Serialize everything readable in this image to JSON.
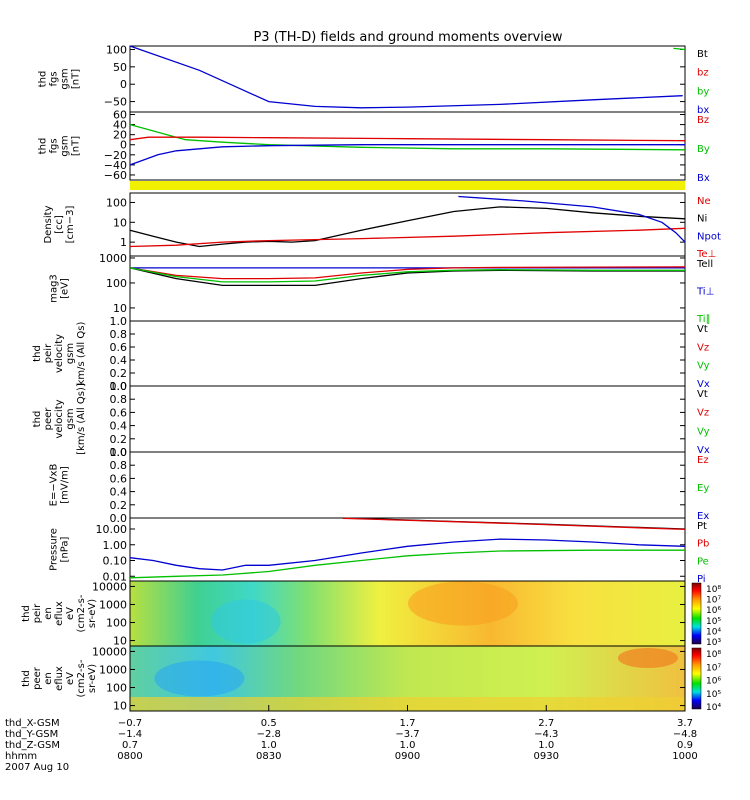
{
  "title": "P3 (TH-D) fields and ground moments overview",
  "date_label": "2007 Aug 10",
  "colors": {
    "black": "#000000",
    "red": "#e00000",
    "green": "#00c000",
    "blue": "#0000d0",
    "yellow": "#f0f000"
  },
  "chart_data": [
    {
      "type": "line",
      "id": "bt",
      "ylabel": [
        "thd",
        "fgs",
        "gsm",
        "[nT]"
      ],
      "yticks": [
        "100",
        "50",
        "0",
        "−50"
      ],
      "ylim": [
        -80,
        110
      ],
      "yticks_num": [
        100,
        50,
        0,
        -50
      ],
      "legend": [
        {
          "label": "Bt",
          "color": "black"
        },
        {
          "label": "bz",
          "color": "red"
        },
        {
          "label": "by",
          "color": "green"
        },
        {
          "label": "bx",
          "color": "blue"
        }
      ],
      "series": [
        {
          "name": "bx",
          "color": "blue",
          "x": [
            0,
            15,
            25,
            30,
            40,
            50,
            60,
            80,
            100,
            119.5
          ],
          "y": [
            110,
            40,
            -20,
            -50,
            -64,
            -68,
            -66,
            -58,
            -45,
            -33
          ]
        },
        {
          "name": "by",
          "color": "green",
          "x": [
            117.5,
            120
          ],
          "y": [
            103,
            100
          ]
        }
      ]
    },
    {
      "type": "line",
      "id": "b",
      "ylabel": [
        "thd",
        "fgs",
        "gsm",
        "[nT]"
      ],
      "yticks": [
        "60",
        "40",
        "20",
        "0",
        "−20",
        "−40",
        "−60"
      ],
      "ylim": [
        -70,
        65
      ],
      "yticks_num": [
        60,
        40,
        20,
        0,
        -20,
        -40,
        -60
      ],
      "legend": [
        {
          "label": "Bz",
          "color": "red"
        },
        {
          "label": "By",
          "color": "green"
        },
        {
          "label": "Bx",
          "color": "blue"
        }
      ],
      "series": [
        {
          "name": "By",
          "color": "green",
          "x": [
            0,
            4,
            8,
            12,
            20,
            30,
            50,
            70,
            90,
            120
          ],
          "y": [
            40,
            30,
            20,
            10,
            5,
            0,
            -5,
            -8,
            -8,
            -10
          ]
        },
        {
          "name": "Bz",
          "color": "red",
          "x": [
            0,
            4,
            8,
            15,
            30,
            60,
            90,
            120
          ],
          "y": [
            10,
            15,
            15,
            15,
            14,
            12,
            10,
            8
          ]
        },
        {
          "name": "Bx",
          "color": "blue",
          "x": [
            0,
            3,
            6,
            10,
            15,
            20,
            30,
            50,
            80,
            120
          ],
          "y": [
            -40,
            -30,
            -20,
            -12,
            -8,
            -4,
            -2,
            0,
            0,
            0
          ]
        }
      ]
    },
    {
      "type": "line",
      "id": "density",
      "ylabel": [
        "Density",
        "[cc]",
        "[cm−3]"
      ],
      "yticks": [
        "100",
        "10",
        "1"
      ],
      "scale": "log",
      "ylim": [
        0.2,
        300
      ],
      "yticks_num": [
        100,
        10,
        1
      ],
      "legend": [
        {
          "label": "Ne",
          "color": "red"
        },
        {
          "label": "Ni",
          "color": "black"
        },
        {
          "label": "Npot",
          "color": "blue"
        },
        {
          "label": "Te⊥",
          "color": "red"
        }
      ],
      "series": [
        {
          "name": "Ni",
          "color": "black",
          "x": [
            0,
            5,
            10,
            15,
            20,
            25,
            30,
            35,
            40,
            50,
            60,
            70,
            80,
            90,
            100,
            110,
            120
          ],
          "y": [
            4,
            2,
            1,
            0.6,
            0.8,
            1,
            1.1,
            1,
            1.2,
            4,
            12,
            35,
            60,
            50,
            30,
            20,
            15
          ]
        },
        {
          "name": "Ne",
          "color": "red",
          "x": [
            0,
            10,
            20,
            30,
            50,
            70,
            90,
            110,
            120
          ],
          "y": [
            0.6,
            0.7,
            1,
            1.2,
            1.5,
            2,
            3,
            4,
            5
          ]
        },
        {
          "name": "Npot",
          "color": "blue",
          "x": [
            71,
            85,
            100,
            110,
            115,
            118,
            120
          ],
          "y": [
            200,
            120,
            60,
            25,
            10,
            3,
            1
          ]
        }
      ]
    },
    {
      "type": "line",
      "id": "temp",
      "ylabel": [
        "mag3",
        "[eV]"
      ],
      "yticks": [
        "1000",
        "100",
        "10"
      ],
      "scale": "log",
      "ylim": [
        3,
        1200
      ],
      "yticks_num": [
        1000,
        100,
        10
      ],
      "legend": [
        {
          "label": "Tell",
          "color": "black"
        },
        {
          "label": "Ti⊥",
          "color": "blue"
        },
        {
          "label": "Ti∥",
          "color": "green"
        }
      ],
      "series": [
        {
          "name": "Ti⊥",
          "color": "blue",
          "x": [
            0,
            20,
            40,
            60,
            80,
            100,
            120
          ],
          "y": [
            400,
            400,
            400,
            400,
            400,
            400,
            400
          ]
        },
        {
          "name": "Te⊥",
          "color": "red",
          "x": [
            0,
            10,
            20,
            30,
            40,
            50,
            60,
            70,
            80,
            100,
            120
          ],
          "y": [
            400,
            200,
            150,
            150,
            160,
            250,
            350,
            400,
            420,
            430,
            440
          ]
        },
        {
          "name": "Tell",
          "color": "black",
          "x": [
            0,
            10,
            20,
            30,
            40,
            50,
            60,
            70,
            80,
            100,
            120
          ],
          "y": [
            400,
            150,
            80,
            80,
            80,
            150,
            250,
            300,
            320,
            300,
            300
          ]
        },
        {
          "name": "Ti∥",
          "color": "green",
          "x": [
            0,
            10,
            20,
            30,
            40,
            50,
            60,
            70,
            80,
            100,
            120
          ],
          "y": [
            400,
            180,
            110,
            110,
            120,
            200,
            280,
            320,
            340,
            320,
            320
          ]
        }
      ]
    },
    {
      "type": "line",
      "id": "vi",
      "ylabel": [
        "thd",
        "peir",
        "velocity",
        "gsm",
        "km/s (All Qs)"
      ],
      "yticks": [
        "1.0",
        "0.8",
        "0.6",
        "0.4",
        "0.2",
        "0.0"
      ],
      "ylim": [
        0,
        1
      ],
      "yticks_num": [
        1,
        0.8,
        0.6,
        0.4,
        0.2,
        0
      ],
      "legend": [
        {
          "label": "Vt",
          "color": "black"
        },
        {
          "label": "Vz",
          "color": "red"
        },
        {
          "label": "Vy",
          "color": "green"
        },
        {
          "label": "Vx",
          "color": "blue"
        }
      ],
      "series": []
    },
    {
      "type": "line",
      "id": "ve",
      "ylabel": [
        "thd",
        "peer",
        "velocity",
        "gsm",
        "[km/s (All Qs)]"
      ],
      "yticks": [
        "1.0",
        "0.8",
        "0.6",
        "0.4",
        "0.2",
        "0.0"
      ],
      "ylim": [
        0,
        1
      ],
      "yticks_num": [
        1,
        0.8,
        0.6,
        0.4,
        0.2,
        0
      ],
      "legend": [
        {
          "label": "Vt",
          "color": "black"
        },
        {
          "label": "Vz",
          "color": "red"
        },
        {
          "label": "Vy",
          "color": "green"
        },
        {
          "label": "Vx",
          "color": "blue"
        }
      ],
      "series": []
    },
    {
      "type": "line",
      "id": "e",
      "ylabel": [
        "E=−VxB",
        "[mV/m]"
      ],
      "yticks": [
        "1.0",
        "0.8",
        "0.6",
        "0.4",
        "0.2",
        "0.0"
      ],
      "ylim": [
        0,
        1
      ],
      "yticks_num": [
        1,
        0.8,
        0.6,
        0.4,
        0.2,
        0
      ],
      "legend": [
        {
          "label": "Ez",
          "color": "red"
        },
        {
          "label": "Ey",
          "color": "green"
        },
        {
          "label": "Ex",
          "color": "blue"
        }
      ],
      "series": []
    },
    {
      "type": "line",
      "id": "pressure",
      "ylabel": [
        "Pressure",
        "[nPa]"
      ],
      "yticks": [
        "10.00",
        "1.00",
        "0.10",
        "0.01"
      ],
      "scale": "log",
      "ylim": [
        0.005,
        50
      ],
      "yticks_num": [
        10,
        1,
        0.1,
        0.01
      ],
      "legend": [
        {
          "label": "Pt",
          "color": "black"
        },
        {
          "label": "Pb",
          "color": "red"
        },
        {
          "label": "Pe",
          "color": "green"
        },
        {
          "label": "Pi",
          "color": "blue"
        }
      ],
      "series": [
        {
          "name": "Pt",
          "color": "black",
          "x": [
            46,
            70,
            90,
            120
          ],
          "y": [
            50,
            30,
            20,
            10
          ]
        },
        {
          "name": "Pb",
          "color": "red",
          "x": [
            46,
            70,
            90,
            120
          ],
          "y": [
            48,
            29,
            19,
            9.5
          ]
        },
        {
          "name": "Pi",
          "color": "blue",
          "x": [
            0,
            5,
            10,
            15,
            20,
            25,
            30,
            40,
            50,
            60,
            70,
            80,
            90,
            100,
            110,
            120
          ],
          "y": [
            0.15,
            0.1,
            0.05,
            0.03,
            0.025,
            0.05,
            0.05,
            0.1,
            0.3,
            0.8,
            1.5,
            2.3,
            2,
            1.5,
            1,
            0.8
          ]
        },
        {
          "name": "Pe",
          "color": "green",
          "x": [
            0,
            10,
            20,
            30,
            40,
            50,
            60,
            70,
            80,
            100,
            120
          ],
          "y": [
            0.008,
            0.01,
            0.012,
            0.02,
            0.05,
            0.1,
            0.2,
            0.3,
            0.4,
            0.45,
            0.45
          ]
        }
      ]
    },
    {
      "type": "heatmap",
      "id": "ion_spec",
      "ylabel": [
        "thd",
        "peir",
        "en",
        "eflux",
        "eV",
        "(cm2-s-",
        "sr-eV)"
      ],
      "yticks": [
        "10000",
        "1000",
        "100",
        "10"
      ],
      "scale": "log",
      "ylim": [
        5,
        20000
      ],
      "yticks_num": [
        10000,
        1000,
        100,
        10
      ],
      "colorbar_ticks": [
        "10⁸",
        "10⁷",
        "10⁶",
        "10⁵",
        "10⁴",
        "10³"
      ]
    },
    {
      "type": "heatmap",
      "id": "elec_spec",
      "ylabel": [
        "thd",
        "peer",
        "en",
        "eflux",
        "eV",
        "(cm2-s-",
        "sr-eV)"
      ],
      "yticks": [
        "10000",
        "1000",
        "100",
        "10"
      ],
      "scale": "log",
      "ylim": [
        5,
        20000
      ],
      "yticks_num": [
        10000,
        1000,
        100,
        10
      ],
      "colorbar_ticks": [
        "10⁸",
        "10⁷",
        "10⁶",
        "10⁵",
        "10⁴"
      ]
    }
  ],
  "x_axis": {
    "labels": [
      "thd_X-GSM",
      "thd_Y-GSM",
      "thd_Z-GSM",
      "hhmm"
    ],
    "ticks": [
      {
        "t": 0,
        "X": "−0.7",
        "Y": "−1.4",
        "Z": "0.7",
        "hhmm": "0800"
      },
      {
        "t": 30,
        "X": "0.5",
        "Y": "−2.8",
        "Z": "1.0",
        "hhmm": "0830"
      },
      {
        "t": 60,
        "X": "1.7",
        "Y": "−3.7",
        "Z": "1.0",
        "hhmm": "0900"
      },
      {
        "t": 90,
        "X": "2.7",
        "Y": "−4.3",
        "Z": "1.0",
        "hhmm": "0930"
      },
      {
        "t": 120,
        "X": "3.7",
        "Y": "−4.8",
        "Z": "0.9",
        "hhmm": "1000"
      }
    ]
  }
}
